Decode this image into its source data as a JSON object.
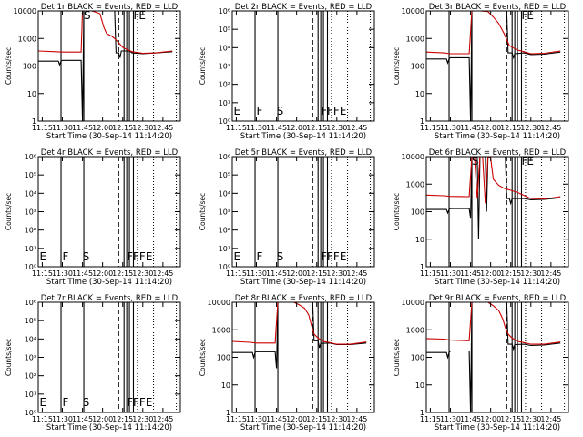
{
  "common": {
    "xlabel": "Start Time (30-Sep-14 11:14:20)",
    "ylabel": "Counts/sec",
    "x_ticks": [
      "11:15",
      "11:30",
      "11:45",
      "12:00",
      "12:15",
      "12:30",
      "12:45"
    ],
    "x_minutes": [
      15,
      30,
      45,
      60,
      75,
      90,
      105
    ],
    "xlim_minutes": [
      12,
      118
    ],
    "colors": {
      "events": "#000000",
      "lld": "#cc0000"
    }
  },
  "chart_data": [
    {
      "type": "line",
      "title": "Det 1r BLACK = Events, RED = LLD",
      "yscale": "log",
      "ylim": [
        1,
        10000
      ],
      "y_ticks": [
        "1",
        "10",
        "100",
        "1000",
        "10000"
      ],
      "y_tick_values": [
        1,
        10,
        100,
        1000,
        10000
      ],
      "labels": [
        {
          "text": "S",
          "x": 46
        },
        {
          "text": "F",
          "x": 83
        },
        {
          "text": "E",
          "x": 87
        }
      ],
      "black_series": [
        [
          12,
          150
        ],
        [
          27,
          150
        ],
        [
          28,
          110
        ],
        [
          29,
          150
        ],
        [
          30,
          160
        ],
        [
          44,
          160
        ],
        [
          45,
          1
        ],
        [
          46,
          10000
        ],
        [
          58,
          10000
        ],
        [
          64,
          10000
        ],
        [
          69,
          10000
        ],
        [
          70,
          300
        ],
        [
          72,
          300
        ],
        [
          73,
          200
        ],
        [
          74,
          350
        ],
        [
          80,
          350
        ],
        [
          82,
          300
        ],
        [
          90,
          280
        ],
        [
          100,
          300
        ],
        [
          112,
          330
        ]
      ],
      "red_series": [
        [
          12,
          350
        ],
        [
          25,
          330
        ],
        [
          30,
          320
        ],
        [
          44,
          320
        ],
        [
          45,
          12000
        ],
        [
          52,
          10000
        ],
        [
          58,
          8000
        ],
        [
          61,
          2500
        ],
        [
          63,
          1500
        ],
        [
          67,
          1200
        ],
        [
          69,
          1000
        ],
        [
          72,
          700
        ],
        [
          75,
          480
        ],
        [
          78,
          400
        ],
        [
          82,
          330
        ],
        [
          90,
          290
        ],
        [
          100,
          300
        ],
        [
          112,
          350
        ]
      ],
      "vlines_solid": [
        29,
        46,
        76,
        78,
        80,
        83
      ],
      "vlines_dashed": [
        72
      ],
      "vlines_dotted": [
        86,
        98,
        115
      ]
    },
    {
      "type": "line",
      "title": "Det 2r BLACK = Events, RED = LLD",
      "yscale": "log",
      "ylim": [
        1,
        1000000
      ],
      "y_ticks": [
        "10⁰",
        "10¹",
        "10²",
        "10³",
        "10⁴",
        "10⁵",
        "10⁶"
      ],
      "y_tick_values": [
        1,
        10,
        100,
        1000,
        10000,
        100000,
        1000000
      ],
      "labels": [
        {
          "text": "E",
          "x": 13
        },
        {
          "text": "F",
          "x": 30
        },
        {
          "text": "S",
          "x": 45
        },
        {
          "text": "FFFE",
          "x": 78
        }
      ],
      "black_series": [],
      "red_series": [],
      "vlines_solid": [
        29,
        46,
        76,
        78,
        80,
        83
      ],
      "vlines_dashed": [
        72
      ],
      "vlines_dotted": [
        86,
        98,
        115
      ]
    },
    {
      "type": "line",
      "title": "Det 3r BLACK = Events, RED = LLD",
      "yscale": "log",
      "ylim": [
        1,
        10000
      ],
      "y_ticks": [
        "1",
        "10",
        "100",
        "1000",
        "10000"
      ],
      "y_tick_values": [
        1,
        10,
        100,
        1000,
        10000
      ],
      "labels": [
        {
          "text": "F",
          "x": 83
        },
        {
          "text": "E",
          "x": 87
        }
      ],
      "black_series": [
        [
          12,
          180
        ],
        [
          27,
          180
        ],
        [
          28,
          130
        ],
        [
          29,
          180
        ],
        [
          30,
          200
        ],
        [
          44,
          200
        ],
        [
          45,
          1
        ],
        [
          46,
          10000
        ],
        [
          58,
          10000
        ],
        [
          66,
          10000
        ],
        [
          72,
          10000
        ],
        [
          73,
          300
        ],
        [
          76,
          300
        ],
        [
          77,
          200
        ],
        [
          78,
          280
        ],
        [
          85,
          300
        ],
        [
          90,
          260
        ],
        [
          100,
          270
        ],
        [
          112,
          320
        ]
      ],
      "red_series": [
        [
          12,
          320
        ],
        [
          25,
          300
        ],
        [
          30,
          280
        ],
        [
          44,
          280
        ],
        [
          46,
          12000
        ],
        [
          52,
          10000
        ],
        [
          58,
          9500
        ],
        [
          62,
          6000
        ],
        [
          66,
          3500
        ],
        [
          70,
          1500
        ],
        [
          72,
          900
        ],
        [
          74,
          550
        ],
        [
          77,
          450
        ],
        [
          80,
          380
        ],
        [
          85,
          330
        ],
        [
          90,
          280
        ],
        [
          100,
          290
        ],
        [
          112,
          350
        ]
      ],
      "vlines_solid": [
        29,
        46,
        76,
        78,
        80,
        83
      ],
      "vlines_dashed": [
        72
      ],
      "vlines_dotted": [
        86,
        98,
        115
      ]
    },
    {
      "type": "line",
      "title": "Det 4r BLACK = Events, RED = LLD",
      "yscale": "log",
      "ylim": [
        1,
        1000000
      ],
      "y_ticks": [
        "10⁰",
        "10¹",
        "10²",
        "10³",
        "10⁴",
        "10⁵",
        "10⁶"
      ],
      "y_tick_values": [
        1,
        10,
        100,
        1000,
        10000,
        100000,
        1000000
      ],
      "labels": [
        {
          "text": "E",
          "x": 13
        },
        {
          "text": "F",
          "x": 30
        },
        {
          "text": "S",
          "x": 45
        },
        {
          "text": "FFFE",
          "x": 78
        }
      ],
      "black_series": [],
      "red_series": [],
      "vlines_solid": [
        29,
        46,
        76,
        78,
        80,
        83
      ],
      "vlines_dashed": [
        72
      ],
      "vlines_dotted": [
        86,
        98,
        115
      ]
    },
    {
      "type": "line",
      "title": "Det 5r BLACK = Events, RED = LLD",
      "yscale": "log",
      "ylim": [
        1,
        1000000
      ],
      "y_ticks": [
        "10⁰",
        "10¹",
        "10²",
        "10³",
        "10⁴",
        "10⁵",
        "10⁶"
      ],
      "y_tick_values": [
        1,
        10,
        100,
        1000,
        10000,
        100000,
        1000000
      ],
      "labels": [
        {
          "text": "E",
          "x": 13
        },
        {
          "text": "F",
          "x": 30
        },
        {
          "text": "S",
          "x": 45
        },
        {
          "text": "FFFE",
          "x": 78
        }
      ],
      "black_series": [],
      "red_series": [],
      "vlines_solid": [
        29,
        46,
        76,
        78,
        80,
        83
      ],
      "vlines_dashed": [
        72
      ],
      "vlines_dotted": [
        86,
        98,
        115
      ]
    },
    {
      "type": "line",
      "title": "Det 6r BLACK = Events, RED = LLD",
      "yscale": "log",
      "ylim": [
        1,
        10000
      ],
      "y_ticks": [
        "1",
        "10",
        "100",
        "1000",
        "10000"
      ],
      "y_tick_values": [
        1,
        10,
        100,
        1000,
        10000
      ],
      "labels": [
        {
          "text": "S",
          "x": 46
        },
        {
          "text": "F",
          "x": 83
        },
        {
          "text": "E",
          "x": 87
        }
      ],
      "black_series": [
        [
          12,
          120
        ],
        [
          27,
          120
        ],
        [
          28,
          90
        ],
        [
          29,
          120
        ],
        [
          30,
          130
        ],
        [
          44,
          130
        ],
        [
          45,
          60
        ],
        [
          46,
          10000
        ],
        [
          50,
          10000
        ],
        [
          51,
          10
        ],
        [
          52,
          10000
        ],
        [
          56,
          10000
        ],
        [
          57,
          100
        ],
        [
          58,
          10000
        ],
        [
          66,
          10000
        ],
        [
          71,
          10000
        ],
        [
          72,
          300
        ],
        [
          74,
          300
        ],
        [
          75,
          200
        ],
        [
          76,
          300
        ],
        [
          85,
          300
        ],
        [
          90,
          270
        ],
        [
          100,
          280
        ],
        [
          112,
          320
        ]
      ],
      "red_series": [
        [
          12,
          400
        ],
        [
          25,
          380
        ],
        [
          30,
          360
        ],
        [
          44,
          350
        ],
        [
          46,
          10000
        ],
        [
          48,
          9000
        ],
        [
          50,
          300
        ],
        [
          52,
          10000
        ],
        [
          54,
          10000
        ],
        [
          56,
          200
        ],
        [
          58,
          10000
        ],
        [
          60,
          9000
        ],
        [
          62,
          1500
        ],
        [
          66,
          900
        ],
        [
          70,
          700
        ],
        [
          75,
          600
        ],
        [
          80,
          500
        ],
        [
          90,
          300
        ],
        [
          100,
          290
        ],
        [
          112,
          350
        ]
      ],
      "vlines_solid": [
        29,
        46,
        76,
        78,
        80,
        83
      ],
      "vlines_dashed": [
        72
      ],
      "vlines_dotted": [
        86,
        98,
        115
      ]
    },
    {
      "type": "line",
      "title": "Det 7r BLACK = Events, RED = LLD",
      "yscale": "log",
      "ylim": [
        1,
        1000000
      ],
      "y_ticks": [
        "10⁰",
        "10¹",
        "10²",
        "10³",
        "10⁴",
        "10⁵",
        "10⁶"
      ],
      "y_tick_values": [
        1,
        10,
        100,
        1000,
        10000,
        100000,
        1000000
      ],
      "labels": [
        {
          "text": "E",
          "x": 13
        },
        {
          "text": "F",
          "x": 30
        },
        {
          "text": "S",
          "x": 45
        },
        {
          "text": "FFFE",
          "x": 78
        }
      ],
      "black_series": [],
      "red_series": [],
      "vlines_solid": [
        29,
        46,
        76,
        78,
        80,
        83
      ],
      "vlines_dashed": [
        72
      ],
      "vlines_dotted": [
        86,
        98,
        115
      ]
    },
    {
      "type": "line",
      "title": "Det 8r BLACK = Events, RED = LLD",
      "yscale": "log",
      "ylim": [
        1,
        10000
      ],
      "y_ticks": [
        "1",
        "10",
        "100",
        "1000",
        "10000"
      ],
      "y_tick_values": [
        1,
        10,
        100,
        1000,
        10000
      ],
      "labels": [],
      "black_series": [
        [
          12,
          150
        ],
        [
          27,
          150
        ],
        [
          28,
          100
        ],
        [
          29,
          150
        ],
        [
          30,
          160
        ],
        [
          44,
          160
        ],
        [
          45,
          40
        ],
        [
          46,
          10000
        ],
        [
          58,
          10000
        ],
        [
          66,
          10000
        ],
        [
          72,
          10000
        ],
        [
          73,
          400
        ],
        [
          76,
          400
        ],
        [
          77,
          220
        ],
        [
          78,
          320
        ],
        [
          85,
          330
        ],
        [
          90,
          290
        ],
        [
          100,
          290
        ],
        [
          112,
          330
        ]
      ],
      "red_series": [
        [
          12,
          380
        ],
        [
          25,
          350
        ],
        [
          30,
          330
        ],
        [
          44,
          330
        ],
        [
          46,
          12000
        ],
        [
          52,
          11000
        ],
        [
          58,
          10000
        ],
        [
          62,
          8000
        ],
        [
          66,
          6000
        ],
        [
          69,
          3500
        ],
        [
          71,
          1500
        ],
        [
          73,
          700
        ],
        [
          76,
          500
        ],
        [
          80,
          380
        ],
        [
          85,
          340
        ],
        [
          90,
          300
        ],
        [
          100,
          300
        ],
        [
          112,
          360
        ]
      ],
      "vlines_solid": [
        29,
        46,
        76,
        78,
        80,
        83
      ],
      "vlines_dashed": [
        72
      ],
      "vlines_dotted": [
        86,
        98,
        115
      ]
    },
    {
      "type": "line",
      "title": "Det 9r BLACK = Events, RED = LLD",
      "yscale": "log",
      "ylim": [
        1,
        10000
      ],
      "y_ticks": [
        "1",
        "10",
        "100",
        "1000",
        "10000"
      ],
      "y_tick_values": [
        1,
        10,
        100,
        1000,
        10000
      ],
      "labels": [],
      "black_series": [
        [
          12,
          150
        ],
        [
          27,
          150
        ],
        [
          28,
          100
        ],
        [
          29,
          150
        ],
        [
          30,
          170
        ],
        [
          44,
          170
        ],
        [
          45,
          1
        ],
        [
          46,
          10000
        ],
        [
          58,
          10000
        ],
        [
          66,
          10000
        ],
        [
          72,
          10000
        ],
        [
          73,
          300
        ],
        [
          76,
          300
        ],
        [
          77,
          200
        ],
        [
          78,
          290
        ],
        [
          85,
          300
        ],
        [
          90,
          270
        ],
        [
          100,
          280
        ],
        [
          112,
          330
        ]
      ],
      "red_series": [
        [
          12,
          480
        ],
        [
          25,
          460
        ],
        [
          30,
          420
        ],
        [
          44,
          400
        ],
        [
          46,
          12000
        ],
        [
          52,
          11000
        ],
        [
          58,
          10000
        ],
        [
          62,
          7500
        ],
        [
          66,
          5000
        ],
        [
          69,
          2500
        ],
        [
          71,
          1200
        ],
        [
          73,
          700
        ],
        [
          76,
          500
        ],
        [
          80,
          380
        ],
        [
          85,
          340
        ],
        [
          90,
          300
        ],
        [
          100,
          300
        ],
        [
          112,
          360
        ]
      ],
      "vlines_solid": [
        29,
        46,
        76,
        78,
        80,
        83
      ],
      "vlines_dashed": [
        72
      ],
      "vlines_dotted": [
        86,
        98,
        115
      ]
    }
  ]
}
